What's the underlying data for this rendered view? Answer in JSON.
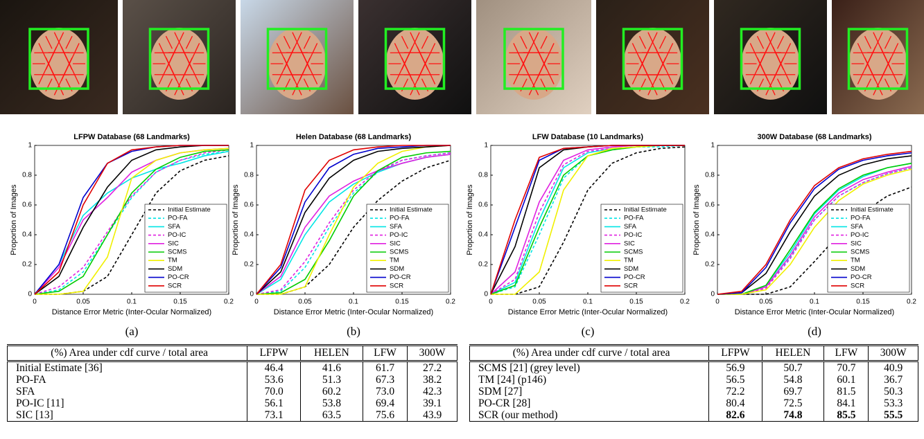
{
  "chart_data": [
    {
      "type": "line",
      "title": "LFPW Database (68 Landmarks)",
      "xlabel": "Distance Error Metric (Inter-Ocular Normalized)",
      "ylabel": "Proportion of Images",
      "x": [
        0,
        0.025,
        0.05,
        0.075,
        0.1,
        0.125,
        0.15,
        0.175,
        0.2
      ],
      "xlim": [
        0,
        0.2
      ],
      "ylim": [
        0,
        1
      ],
      "xticks": [
        0,
        0.05,
        0.1,
        0.15,
        0.2
      ],
      "yticks": [
        0,
        0.2,
        0.4,
        0.6,
        0.8,
        1
      ],
      "legend": "lower right",
      "series": [
        {
          "name": "Initial Estimate",
          "color": "#000000",
          "dashed": true,
          "values": [
            0,
            0,
            0.02,
            0.12,
            0.4,
            0.68,
            0.83,
            0.9,
            0.93
          ]
        },
        {
          "name": "PO-FA",
          "color": "#00e5e5",
          "dashed": true,
          "values": [
            0,
            0.03,
            0.15,
            0.4,
            0.65,
            0.82,
            0.9,
            0.94,
            0.96
          ]
        },
        {
          "name": "SFA",
          "color": "#00e5e5",
          "dashed": false,
          "values": [
            0,
            0.2,
            0.53,
            0.68,
            0.78,
            0.84,
            0.88,
            0.93,
            0.96
          ]
        },
        {
          "name": "PO-IC",
          "color": "#e020e0",
          "dashed": true,
          "values": [
            0,
            0.05,
            0.18,
            0.42,
            0.66,
            0.82,
            0.9,
            0.95,
            0.97
          ]
        },
        {
          "name": "SIC",
          "color": "#e020e0",
          "dashed": false,
          "values": [
            0,
            0.18,
            0.5,
            0.65,
            0.82,
            0.9,
            0.95,
            0.97,
            0.98
          ]
        },
        {
          "name": "SCMS",
          "color": "#00cc00",
          "dashed": false,
          "values": [
            0,
            0.02,
            0.12,
            0.4,
            0.68,
            0.84,
            0.92,
            0.96,
            0.97
          ]
        },
        {
          "name": "TM",
          "color": "#f0f000",
          "dashed": false,
          "values": [
            0,
            0,
            0.02,
            0.25,
            0.78,
            0.9,
            0.95,
            0.97,
            0.98
          ]
        },
        {
          "name": "SDM",
          "color": "#000000",
          "dashed": false,
          "values": [
            0,
            0.12,
            0.45,
            0.72,
            0.9,
            0.97,
            0.99,
            1,
            1
          ]
        },
        {
          "name": "PO-CR",
          "color": "#0000cc",
          "dashed": false,
          "values": [
            0,
            0.2,
            0.65,
            0.88,
            0.96,
            0.99,
            1,
            1,
            1
          ]
        },
        {
          "name": "SCR",
          "color": "#e00000",
          "dashed": false,
          "values": [
            0,
            0.15,
            0.6,
            0.88,
            0.97,
            0.99,
            1,
            1,
            1
          ]
        }
      ]
    },
    {
      "type": "line",
      "title": "Helen Database (68 Landmarks)",
      "xlabel": "Distance Error Metric (Inter-Ocular Normalized)",
      "ylabel": "Proportion of Images",
      "x": [
        0,
        0.025,
        0.05,
        0.075,
        0.1,
        0.125,
        0.15,
        0.175,
        0.2
      ],
      "xlim": [
        0,
        0.2
      ],
      "ylim": [
        0,
        1
      ],
      "xticks": [
        0,
        0.05,
        0.1,
        0.15,
        0.2
      ],
      "yticks": [
        0,
        0.2,
        0.4,
        0.6,
        0.8,
        1
      ],
      "legend": "lower right",
      "series": [
        {
          "name": "Initial Estimate",
          "color": "#000000",
          "dashed": true,
          "values": [
            0,
            0,
            0.05,
            0.2,
            0.45,
            0.63,
            0.76,
            0.85,
            0.9
          ]
        },
        {
          "name": "PO-FA",
          "color": "#00e5e5",
          "dashed": true,
          "values": [
            0,
            0.02,
            0.18,
            0.45,
            0.68,
            0.82,
            0.9,
            0.93,
            0.95
          ]
        },
        {
          "name": "SFA",
          "color": "#00e5e5",
          "dashed": false,
          "values": [
            0,
            0.1,
            0.4,
            0.62,
            0.74,
            0.82,
            0.88,
            0.92,
            0.94
          ]
        },
        {
          "name": "PO-IC",
          "color": "#e020e0",
          "dashed": true,
          "values": [
            0,
            0.03,
            0.22,
            0.48,
            0.7,
            0.83,
            0.9,
            0.93,
            0.95
          ]
        },
        {
          "name": "SIC",
          "color": "#e020e0",
          "dashed": false,
          "values": [
            0,
            0.12,
            0.45,
            0.66,
            0.76,
            0.83,
            0.88,
            0.92,
            0.94
          ]
        },
        {
          "name": "SCMS",
          "color": "#00cc00",
          "dashed": false,
          "values": [
            0,
            0.01,
            0.1,
            0.36,
            0.66,
            0.83,
            0.92,
            0.95,
            0.96
          ]
        },
        {
          "name": "TM",
          "color": "#f0f000",
          "dashed": false,
          "values": [
            0,
            0,
            0.05,
            0.4,
            0.72,
            0.88,
            0.96,
            0.99,
            1
          ]
        },
        {
          "name": "SDM",
          "color": "#000000",
          "dashed": false,
          "values": [
            0,
            0.15,
            0.55,
            0.78,
            0.9,
            0.96,
            0.98,
            0.99,
            1
          ]
        },
        {
          "name": "PO-CR",
          "color": "#0000cc",
          "dashed": false,
          "values": [
            0,
            0.18,
            0.62,
            0.85,
            0.94,
            0.98,
            0.99,
            1,
            1
          ]
        },
        {
          "name": "SCR",
          "color": "#e00000",
          "dashed": false,
          "values": [
            0,
            0.2,
            0.7,
            0.9,
            0.97,
            0.99,
            1,
            1,
            1
          ]
        }
      ]
    },
    {
      "type": "line",
      "title": "LFW Database (10 Landmarks)",
      "xlabel": "Distance Error Metric (Inter-Ocular Normalized)",
      "ylabel": "Proportion of Images",
      "x": [
        0,
        0.025,
        0.05,
        0.075,
        0.1,
        0.125,
        0.15,
        0.175,
        0.2
      ],
      "xlim": [
        0,
        0.2
      ],
      "ylim": [
        0,
        1
      ],
      "xticks": [
        0,
        0.05,
        0.1,
        0.15,
        0.2
      ],
      "yticks": [
        0,
        0.2,
        0.4,
        0.6,
        0.8,
        1
      ],
      "legend": "lower right",
      "series": [
        {
          "name": "Initial Estimate",
          "color": "#000000",
          "dashed": true,
          "values": [
            0,
            0,
            0.05,
            0.35,
            0.7,
            0.88,
            0.95,
            0.98,
            0.99
          ]
        },
        {
          "name": "PO-FA",
          "color": "#00e5e5",
          "dashed": true,
          "values": [
            0,
            0.05,
            0.4,
            0.78,
            0.93,
            0.97,
            0.99,
            0.99,
            1
          ]
        },
        {
          "name": "SFA",
          "color": "#00e5e5",
          "dashed": false,
          "values": [
            0,
            0.08,
            0.5,
            0.85,
            0.95,
            0.98,
            0.99,
            1,
            1
          ]
        },
        {
          "name": "PO-IC",
          "color": "#e020e0",
          "dashed": true,
          "values": [
            0,
            0.1,
            0.55,
            0.87,
            0.96,
            0.98,
            0.99,
            1,
            1
          ]
        },
        {
          "name": "SIC",
          "color": "#e020e0",
          "dashed": false,
          "values": [
            0,
            0.15,
            0.62,
            0.9,
            0.97,
            0.99,
            1,
            1,
            1
          ]
        },
        {
          "name": "SCMS",
          "color": "#00cc00",
          "dashed": false,
          "values": [
            0,
            0.06,
            0.45,
            0.8,
            0.93,
            0.97,
            0.99,
            1,
            1
          ]
        },
        {
          "name": "TM",
          "color": "#f0f000",
          "dashed": false,
          "values": [
            0,
            0,
            0.15,
            0.7,
            0.93,
            0.98,
            0.99,
            1,
            1
          ]
        },
        {
          "name": "SDM",
          "color": "#000000",
          "dashed": false,
          "values": [
            0,
            0.32,
            0.85,
            0.97,
            0.99,
            1,
            1,
            1,
            1
          ]
        },
        {
          "name": "PO-CR",
          "color": "#0000cc",
          "dashed": false,
          "values": [
            0,
            0.45,
            0.9,
            0.98,
            0.99,
            1,
            1,
            1,
            1
          ]
        },
        {
          "name": "SCR",
          "color": "#e00000",
          "dashed": false,
          "values": [
            0,
            0.5,
            0.92,
            0.98,
            0.99,
            1,
            1,
            1,
            1
          ]
        }
      ]
    },
    {
      "type": "line",
      "title": "300W Database (68 Landmarks)",
      "xlabel": "Distance Error Metric (Inter-Ocular Normalized)",
      "ylabel": "Proportion of Images",
      "x": [
        0,
        0.025,
        0.05,
        0.075,
        0.1,
        0.125,
        0.15,
        0.175,
        0.2
      ],
      "xlim": [
        0,
        0.2
      ],
      "ylim": [
        0,
        1
      ],
      "xticks": [
        0,
        0.05,
        0.1,
        0.15,
        0.2
      ],
      "yticks": [
        0,
        0.2,
        0.4,
        0.6,
        0.8,
        1
      ],
      "legend": "lower right",
      "series": [
        {
          "name": "Initial Estimate",
          "color": "#000000",
          "dashed": true,
          "values": [
            0,
            0,
            0,
            0.05,
            0.22,
            0.4,
            0.55,
            0.66,
            0.72
          ]
        },
        {
          "name": "PO-FA",
          "color": "#00e5e5",
          "dashed": true,
          "values": [
            0,
            0,
            0.05,
            0.25,
            0.5,
            0.66,
            0.75,
            0.81,
            0.85
          ]
        },
        {
          "name": "SFA",
          "color": "#00e5e5",
          "dashed": false,
          "values": [
            0,
            0,
            0.06,
            0.28,
            0.54,
            0.7,
            0.79,
            0.85,
            0.88
          ]
        },
        {
          "name": "PO-IC",
          "color": "#e020e0",
          "dashed": true,
          "values": [
            0,
            0,
            0.04,
            0.24,
            0.5,
            0.66,
            0.75,
            0.81,
            0.85
          ]
        },
        {
          "name": "SIC",
          "color": "#e020e0",
          "dashed": false,
          "values": [
            0,
            0,
            0.05,
            0.26,
            0.52,
            0.68,
            0.77,
            0.82,
            0.86
          ]
        },
        {
          "name": "SCMS",
          "color": "#00cc00",
          "dashed": false,
          "values": [
            0,
            0,
            0.06,
            0.3,
            0.55,
            0.71,
            0.8,
            0.85,
            0.88
          ]
        },
        {
          "name": "TM",
          "color": "#f0f000",
          "dashed": false,
          "values": [
            0,
            0,
            0.03,
            0.2,
            0.45,
            0.63,
            0.74,
            0.8,
            0.84
          ]
        },
        {
          "name": "SDM",
          "color": "#000000",
          "dashed": false,
          "values": [
            0,
            0.01,
            0.14,
            0.42,
            0.66,
            0.8,
            0.87,
            0.91,
            0.93
          ]
        },
        {
          "name": "PO-CR",
          "color": "#0000cc",
          "dashed": false,
          "values": [
            0,
            0.01,
            0.18,
            0.48,
            0.71,
            0.84,
            0.9,
            0.93,
            0.95
          ]
        },
        {
          "name": "SCR",
          "color": "#e00000",
          "dashed": false,
          "values": [
            0,
            0.02,
            0.2,
            0.5,
            0.73,
            0.85,
            0.91,
            0.94,
            0.96
          ]
        }
      ]
    }
  ],
  "captions": [
    "(a)",
    "(b)",
    "(c)",
    "(d)"
  ],
  "tables": [
    {
      "header": [
        "(%) Area under cdf curve / total area",
        "LFPW",
        "HELEN",
        "LFW",
        "300W"
      ],
      "rows": [
        [
          "Initial Estimate [36]",
          "46.4",
          "41.6",
          "61.7",
          "27.2"
        ],
        [
          "PO-FA",
          "53.6",
          "51.3",
          "67.3",
          "38.2"
        ],
        [
          "SFA",
          "70.0",
          "60.2",
          "73.0",
          "42.3"
        ],
        [
          "PO-IC [11]",
          "56.1",
          "53.8",
          "69.4",
          "39.1"
        ],
        [
          "SIC [13]",
          "73.1",
          "63.5",
          "75.6",
          "43.9"
        ]
      ]
    },
    {
      "header": [
        "(%) Area under cdf curve / total area",
        "LFPW",
        "HELEN",
        "LFW",
        "300W"
      ],
      "rows": [
        [
          "SCMS [21] (grey level)",
          "56.9",
          "50.7",
          "70.7",
          "40.9"
        ],
        [
          "TM [24] (p146)",
          "56.5",
          "54.8",
          "60.1",
          "36.7"
        ],
        [
          "SDM [27]",
          "72.2",
          "69.7",
          "81.5",
          "50.3"
        ],
        [
          "PO-CR [28]",
          "80.4",
          "72.5",
          "84.1",
          "53.3"
        ],
        [
          "SCR (our method)",
          "82.6",
          "74.8",
          "85.5",
          "55.5"
        ]
      ]
    }
  ]
}
